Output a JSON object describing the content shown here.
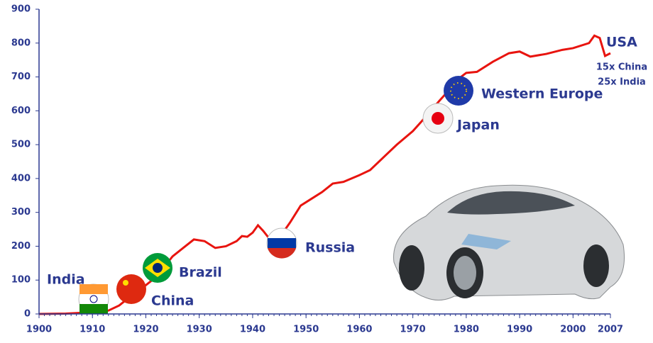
{
  "chart_data": {
    "type": "line",
    "x": [
      1900,
      1905,
      1910,
      1913,
      1915,
      1917,
      1920,
      1922,
      1925,
      1927,
      1929,
      1931,
      1933,
      1935,
      1937,
      1938,
      1939,
      1940,
      1941,
      1942,
      1943,
      1945,
      1947,
      1949,
      1951,
      1953,
      1955,
      1957,
      1960,
      1962,
      1965,
      1967,
      1970,
      1972,
      1975,
      1977,
      1979,
      1980,
      1982,
      1985,
      1988,
      1990,
      1992,
      1995,
      1998,
      2000,
      2003,
      2004,
      2005,
      2006,
      2007
    ],
    "series": [
      {
        "name": "USA",
        "color": "#e8140f",
        "values": [
          0,
          1,
          5,
          10,
          25,
          50,
          85,
          110,
          170,
          195,
          220,
          215,
          195,
          200,
          215,
          230,
          228,
          240,
          262,
          245,
          225,
          225,
          270,
          320,
          340,
          360,
          385,
          390,
          410,
          425,
          470,
          500,
          540,
          575,
          630,
          665,
          700,
          712,
          715,
          745,
          770,
          775,
          760,
          768,
          780,
          785,
          800,
          822,
          815,
          762,
          770
        ]
      }
    ],
    "xlim": [
      1900,
      2007
    ],
    "ylim": [
      0,
      900
    ],
    "xticks": [
      1900,
      1910,
      1920,
      1930,
      1940,
      1950,
      1960,
      1970,
      1980,
      1990,
      2000,
      2007
    ],
    "yticks": [
      0,
      100,
      200,
      300,
      400,
      500,
      600,
      700,
      800,
      900
    ],
    "annotations": [
      "15x China",
      "25x India",
      "India",
      "China",
      "Brazil",
      "Russia",
      "Japan",
      "Western Europe"
    ]
  }
}
